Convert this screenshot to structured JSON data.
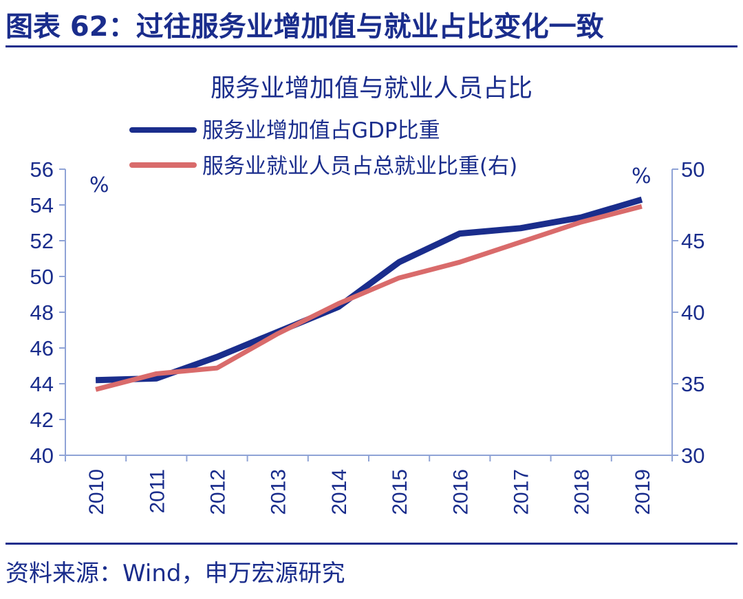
{
  "figure": {
    "title": "图表 62：过往服务业增加值与就业占比变化一致",
    "source": "资料来源：Wind，申万宏源研究"
  },
  "chart_data": {
    "type": "line",
    "title": "服务业增加值与就业人员占比",
    "categories": [
      "2010",
      "2011",
      "2012",
      "2013",
      "2014",
      "2015",
      "2016",
      "2017",
      "2018",
      "2019"
    ],
    "left_axis": {
      "unit": "%",
      "range": [
        40,
        56
      ],
      "ticks": [
        "40",
        "42",
        "44",
        "46",
        "48",
        "50",
        "52",
        "54",
        "56"
      ]
    },
    "right_axis": {
      "unit": "%",
      "range": [
        30,
        50
      ],
      "ticks": [
        "30",
        "35",
        "40",
        "45",
        "50"
      ]
    },
    "legend_position": "top",
    "grid": false,
    "series": [
      {
        "name": "服务业增加值占GDP比重",
        "axis": "left",
        "color": "#1a2d8c",
        "values": [
          44.2,
          44.3,
          45.5,
          46.9,
          48.3,
          50.8,
          52.4,
          52.7,
          53.3,
          54.3
        ]
      },
      {
        "name": "服务业就业人员占总就业比重(右)",
        "axis": "right",
        "color": "#d96b6b",
        "values": [
          34.6,
          35.7,
          36.1,
          38.5,
          40.6,
          42.4,
          43.5,
          44.9,
          46.3,
          47.4
        ]
      }
    ]
  }
}
